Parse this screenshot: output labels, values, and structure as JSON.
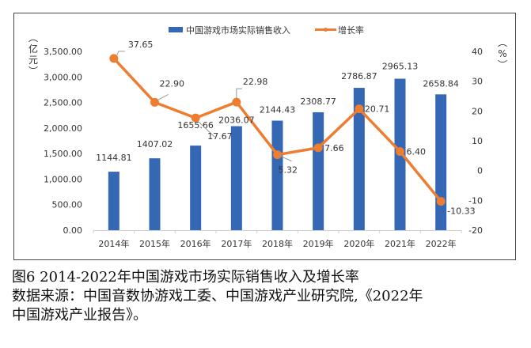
{
  "chart_data": {
    "type": "bar",
    "categories": [
      "2014年",
      "2015年",
      "2016年",
      "2017年",
      "2018年",
      "2019年",
      "2020年",
      "2021年",
      "2022年"
    ],
    "series": [
      {
        "name": "中国游戏市场实际销售收入",
        "type": "bar",
        "axis": "left",
        "color": "#3468b4",
        "values": [
          1144.81,
          1407.02,
          1655.66,
          2036.07,
          2144.43,
          2308.77,
          2786.87,
          2965.13,
          2658.84
        ],
        "labels": [
          "1144.81",
          "1407.02",
          "1655.66",
          "2036.07",
          "2144.43",
          "2308.77",
          "2786.87",
          "2965.13",
          "2658.84"
        ]
      },
      {
        "name": "增长率",
        "type": "line",
        "axis": "right",
        "color": "#ed7d31",
        "values": [
          37.65,
          22.9,
          17.67,
          22.98,
          5.32,
          7.66,
          20.71,
          6.4,
          -10.33
        ],
        "labels": [
          "37.65",
          "22.90",
          "17.67",
          "22.98",
          "5.32",
          "7.66",
          "20.71",
          "6.40",
          "-10.33"
        ]
      }
    ],
    "y_left": {
      "label": "（亿元）",
      "label_chars": [
        "︵",
        "亿",
        "元",
        "︶"
      ],
      "ylim": [
        0,
        3500
      ],
      "ticks": [
        "0.00",
        "500.00",
        "1,000.00",
        "1,500.00",
        "2,000.00",
        "2,500.00",
        "3,000.00",
        "3,500.00"
      ],
      "tick_values": [
        0,
        500,
        1000,
        1500,
        2000,
        2500,
        3000,
        3500
      ]
    },
    "y_right": {
      "label": "（%）",
      "label_chars": [
        "︵",
        "%",
        "︶"
      ],
      "ylim": [
        -20,
        40
      ],
      "ticks": [
        "-20",
        "-10",
        "0",
        "10",
        "20",
        "30",
        "40"
      ],
      "tick_values": [
        -20,
        -10,
        0,
        10,
        20,
        30,
        40
      ]
    },
    "legend_position": "top",
    "grid": false
  },
  "caption": {
    "line1": "图6 2014-2022年中国游戏市场实际销售收入及增长率",
    "line2": "数据来源：中国音数协游戏工委、中国游戏产业研究院,《2022年",
    "line3": "中国游戏产业报告》。"
  }
}
